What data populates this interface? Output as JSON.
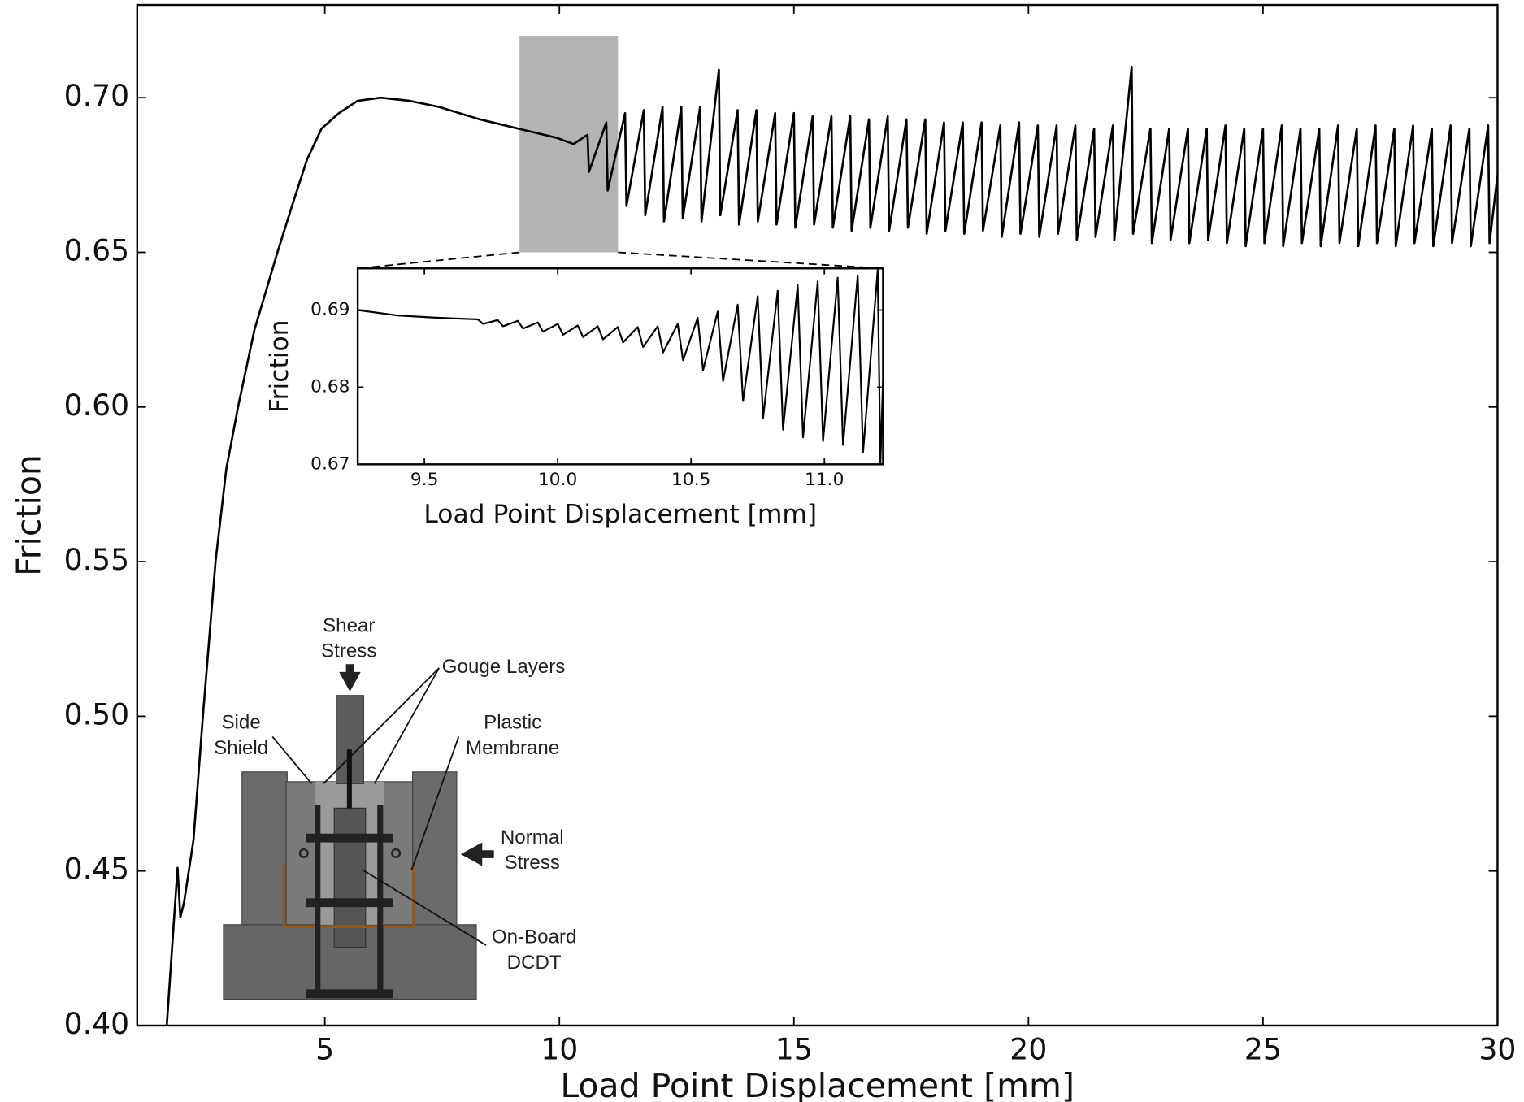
{
  "chart_data": [
    {
      "type": "line",
      "xlabel": "Load Point Displacement [mm]",
      "ylabel": "Friction",
      "color": "#000000",
      "xlim": [
        1.0,
        30
      ],
      "ylim": [
        0.4,
        0.73
      ],
      "xticks": [
        5,
        10,
        15,
        20,
        25,
        30
      ],
      "yticks": [
        {
          "value": 0.4,
          "label": "0.40"
        },
        0.45,
        {
          "value": 0.5,
          "label": "0.50"
        },
        0.55,
        {
          "value": 0.6,
          "label": "0.60"
        },
        0.65,
        {
          "value": 0.7,
          "label": "0.70"
        }
      ],
      "grid": false,
      "highlight": {
        "xlim": [
          9.15,
          11.25
        ],
        "ylim": [
          0.65,
          0.72
        ],
        "color": "#b3b3b3"
      },
      "x": [
        1.63,
        1.86,
        1.92,
        2.0,
        2.2,
        2.4,
        2.67,
        2.9,
        3.15,
        3.5,
        3.99,
        4.3,
        4.62,
        4.93,
        5.3,
        5.7,
        6.19,
        6.8,
        7.44,
        8.3,
        9.12,
        9.95,
        10.3,
        10.6,
        10.63,
        11.0,
        11.03,
        11.4,
        11.43,
        11.8,
        11.83,
        12.2,
        12.23,
        12.6,
        12.63,
        13.0,
        13.03,
        13.4,
        13.43,
        13.8,
        13.83,
        14.2,
        14.23,
        14.6,
        14.63,
        15.0,
        15.03,
        15.4,
        15.43,
        15.8,
        15.83,
        16.2,
        16.23,
        16.6,
        16.63,
        17.0,
        17.03,
        17.4,
        17.43,
        17.8,
        17.83,
        18.2,
        18.23,
        18.6,
        18.63,
        19.0,
        19.03,
        19.4,
        19.43,
        19.8,
        19.83,
        20.2,
        20.23,
        20.6,
        20.63,
        21.0,
        21.03,
        21.4,
        21.43,
        21.8,
        21.83,
        22.2,
        22.23,
        22.6,
        22.63,
        23.0,
        23.03,
        23.4,
        23.43,
        23.8,
        23.83,
        24.2,
        24.23,
        24.6,
        24.63,
        25.0,
        25.03,
        25.4,
        25.43,
        25.8,
        25.83,
        26.2,
        26.23,
        26.6,
        26.63,
        27.0,
        27.03,
        27.4,
        27.43,
        27.8,
        27.83,
        28.2,
        28.23,
        28.6,
        28.63,
        29.0,
        29.03,
        29.4,
        29.43,
        29.8,
        29.83,
        30.0
      ],
      "values": [
        0.4,
        0.451,
        0.435,
        0.44,
        0.46,
        0.5,
        0.55,
        0.58,
        0.6,
        0.625,
        0.65,
        0.665,
        0.68,
        0.69,
        0.695,
        0.699,
        0.7,
        0.699,
        0.697,
        0.693,
        0.69,
        0.687,
        0.685,
        0.688,
        0.676,
        0.692,
        0.67,
        0.695,
        0.665,
        0.696,
        0.662,
        0.697,
        0.66,
        0.697,
        0.661,
        0.697,
        0.66,
        0.709,
        0.662,
        0.696,
        0.659,
        0.696,
        0.66,
        0.695,
        0.659,
        0.695,
        0.658,
        0.694,
        0.659,
        0.694,
        0.658,
        0.694,
        0.657,
        0.693,
        0.658,
        0.694,
        0.657,
        0.693,
        0.658,
        0.693,
        0.656,
        0.692,
        0.657,
        0.692,
        0.656,
        0.692,
        0.657,
        0.691,
        0.655,
        0.692,
        0.656,
        0.691,
        0.655,
        0.691,
        0.656,
        0.691,
        0.654,
        0.69,
        0.655,
        0.691,
        0.654,
        0.71,
        0.656,
        0.69,
        0.653,
        0.69,
        0.654,
        0.69,
        0.653,
        0.69,
        0.654,
        0.691,
        0.653,
        0.69,
        0.652,
        0.69,
        0.653,
        0.691,
        0.652,
        0.69,
        0.653,
        0.69,
        0.652,
        0.691,
        0.653,
        0.69,
        0.652,
        0.691,
        0.653,
        0.69,
        0.652,
        0.691,
        0.653,
        0.69,
        0.652,
        0.691,
        0.653,
        0.69,
        0.652,
        0.691,
        0.653,
        0.675
      ]
    },
    {
      "type": "line",
      "xlabel": "Load Point Displacement [mm]",
      "ylabel": "Friction",
      "color": "#000000",
      "xlim": [
        9.25,
        11.22
      ],
      "ylim": [
        0.67,
        0.6954
      ],
      "xticks": [
        9.5,
        {
          "value": 10.0,
          "label": "10.0"
        },
        10.5,
        {
          "value": 11.0,
          "label": "11.0"
        }
      ],
      "yticks": [
        0.67,
        0.68,
        0.69
      ],
      "grid": false,
      "x": [
        9.25,
        9.4,
        9.55,
        9.7,
        9.72,
        9.775,
        9.795,
        9.85,
        9.87,
        9.925,
        9.945,
        10.0,
        10.02,
        10.075,
        10.095,
        10.15,
        10.17,
        10.225,
        10.245,
        10.3,
        10.32,
        10.375,
        10.395,
        10.45,
        10.47,
        10.525,
        10.545,
        10.6,
        10.62,
        10.675,
        10.695,
        10.75,
        10.77,
        10.825,
        10.845,
        10.9,
        10.92,
        10.975,
        10.995,
        11.05,
        11.07,
        11.125,
        11.145,
        11.2,
        11.21,
        11.22
      ],
      "values": [
        0.69,
        0.6893,
        0.689,
        0.6888,
        0.6882,
        0.6887,
        0.6879,
        0.6886,
        0.6876,
        0.6884,
        0.6872,
        0.6882,
        0.6868,
        0.688,
        0.6865,
        0.6879,
        0.6862,
        0.6878,
        0.6858,
        0.6878,
        0.6852,
        0.6879,
        0.6845,
        0.6882,
        0.6835,
        0.689,
        0.6822,
        0.6898,
        0.6808,
        0.6907,
        0.6782,
        0.6918,
        0.676,
        0.6925,
        0.6745,
        0.6932,
        0.6735,
        0.6937,
        0.673,
        0.6942,
        0.6725,
        0.6945,
        0.6715,
        0.6952,
        0.67,
        0.681
      ]
    }
  ],
  "diagram": {
    "labels": [
      {
        "lines": [
          "Shear",
          "Stress"
        ]
      },
      {
        "lines": [
          "Gouge Layers"
        ]
      },
      {
        "lines": [
          "Side",
          "Shield"
        ]
      },
      {
        "lines": [
          "Plastic",
          "Membrane"
        ]
      },
      {
        "lines": [
          "Normal",
          "Stress"
        ]
      },
      {
        "lines": [
          "On-Board",
          "DCDT"
        ]
      }
    ]
  }
}
